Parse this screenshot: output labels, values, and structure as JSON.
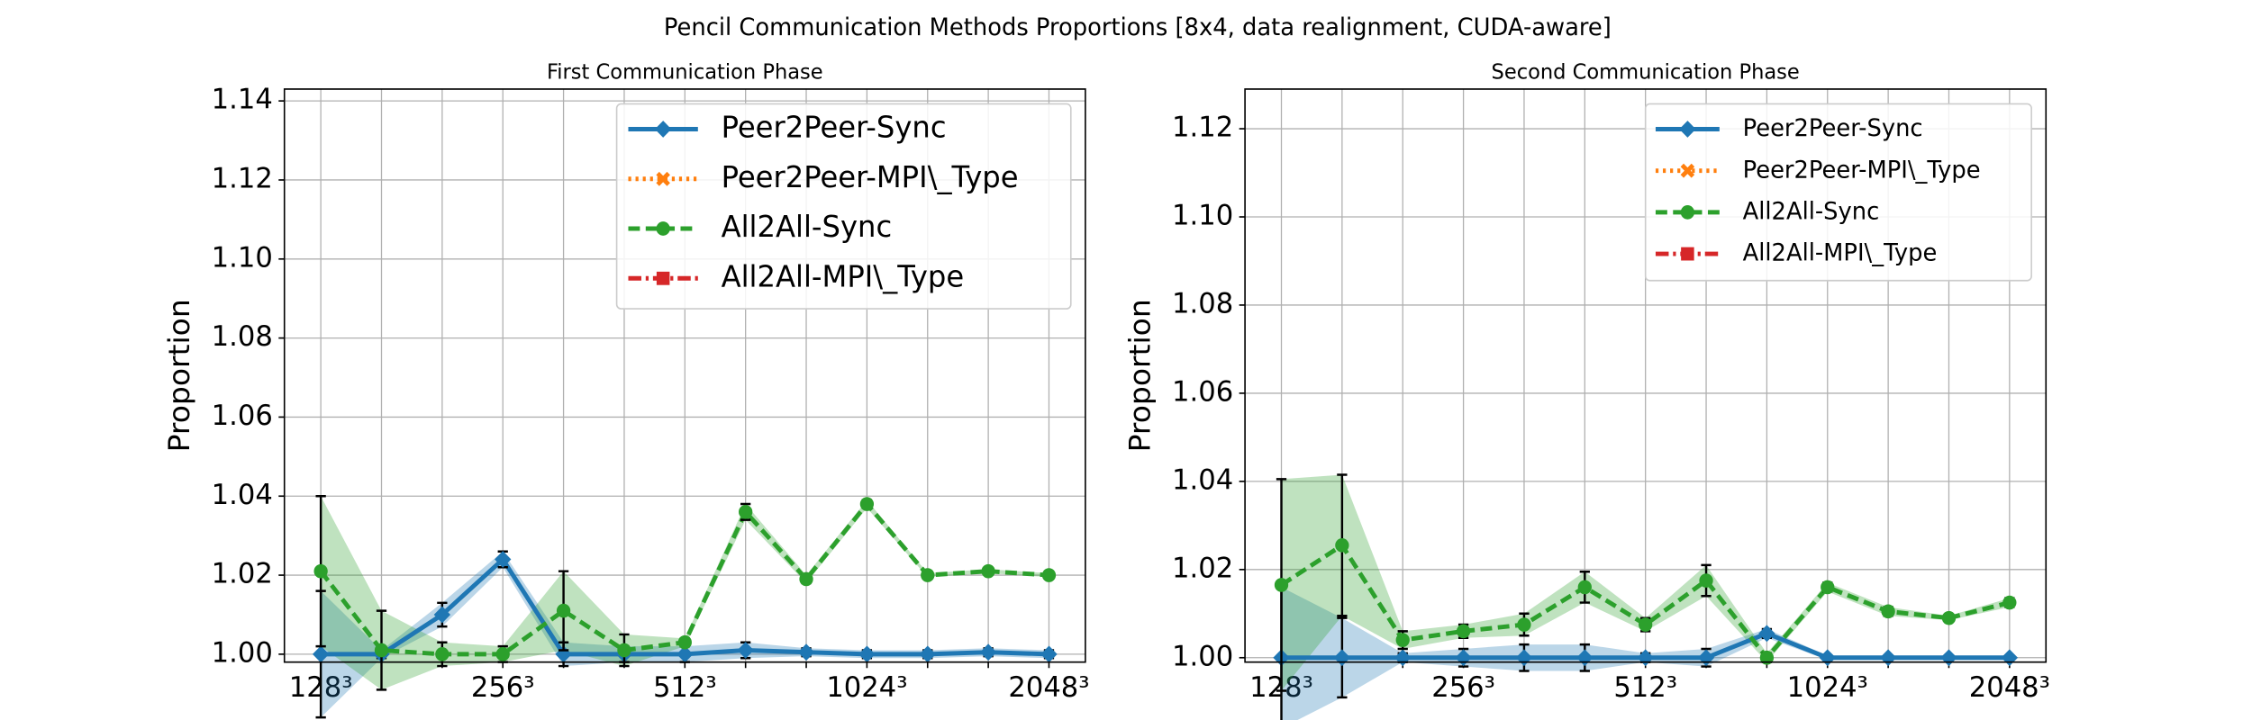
{
  "title": "Pencil Communication Methods Proportions [8x4, data realignment, CUDA-aware]",
  "chart_data": [
    {
      "type": "line",
      "title": "First Communication Phase",
      "y_label": "Proportion",
      "categories": [
        "128³",
        null,
        null,
        "256³",
        null,
        null,
        "512³",
        null,
        null,
        "1024³",
        null,
        null,
        "2048³"
      ],
      "ylim": [
        0.998,
        1.143
      ],
      "yticks": [
        {
          "value": 1.0,
          "label": "1.00"
        },
        {
          "value": 1.02,
          "label": "1.02"
        },
        {
          "value": 1.04,
          "label": "1.04"
        },
        {
          "value": 1.06,
          "label": "1.06"
        },
        {
          "value": 1.08,
          "label": "1.08"
        },
        {
          "value": 1.1,
          "label": "1.10"
        },
        {
          "value": 1.12,
          "label": "1.12"
        },
        {
          "value": 1.14,
          "label": "1.14"
        }
      ],
      "grid": true,
      "legend": "upper right",
      "series": [
        {
          "name": "Peer2Peer-Sync",
          "color": "#1f77b4",
          "linestyle": "solid",
          "marker": "diamond",
          "values": [
            1.0,
            1.0,
            1.01,
            1.024,
            1.0,
            1.0,
            1.0,
            1.001,
            1.0005,
            1.0,
            1.0,
            1.0005,
            1.0
          ],
          "errors": [
            0.016,
            0.001,
            0.003,
            0.002,
            0.003,
            0.002,
            0.002,
            0.002,
            0.001,
            0.001,
            0.001,
            0.001,
            0.001
          ]
        },
        {
          "name": "Peer2Peer-MPI\\_Type",
          "color": "#ff7f0e",
          "linestyle": "dotted",
          "marker": "x",
          "values": [
            null,
            null,
            null,
            null,
            null,
            null,
            null,
            null,
            null,
            null,
            null,
            null,
            null
          ]
        },
        {
          "name": "All2All-Sync",
          "color": "#2ca02c",
          "linestyle": "dashed",
          "marker": "circle",
          "values": [
            1.021,
            1.001,
            1.0,
            1.0,
            1.011,
            1.001,
            1.003,
            1.036,
            1.019,
            1.038,
            1.02,
            1.021,
            1.02
          ],
          "errors": [
            0.019,
            0.01,
            0.003,
            0.002,
            0.01,
            0.004,
            0.001,
            0.002,
            0.001,
            0.001,
            0.0005,
            0.0005,
            0.0005
          ]
        },
        {
          "name": "All2All-MPI\\_Type",
          "color": "#d62728",
          "linestyle": "dashdot",
          "marker": "square",
          "values": [
            null,
            null,
            null,
            null,
            null,
            null,
            null,
            null,
            null,
            null,
            null,
            null,
            null
          ]
        }
      ]
    },
    {
      "type": "line",
      "title": "Second Communication Phase",
      "y_label": "Proportion",
      "categories": [
        "128³",
        null,
        null,
        "256³",
        null,
        null,
        "512³",
        null,
        null,
        "1024³",
        null,
        null,
        "2048³"
      ],
      "ylim": [
        0.999,
        1.129
      ],
      "yticks": [
        {
          "value": 1.0,
          "label": "1.00"
        },
        {
          "value": 1.02,
          "label": "1.02"
        },
        {
          "value": 1.04,
          "label": "1.04"
        },
        {
          "value": 1.06,
          "label": "1.06"
        },
        {
          "value": 1.08,
          "label": "1.08"
        },
        {
          "value": 1.1,
          "label": "1.10"
        },
        {
          "value": 1.12,
          "label": "1.12"
        }
      ],
      "grid": true,
      "legend": "upper right",
      "series": [
        {
          "name": "Peer2Peer-Sync",
          "color": "#1f77b4",
          "linestyle": "solid",
          "marker": "diamond",
          "values": [
            1.0,
            1.0,
            1.0,
            1.0,
            1.0,
            1.0,
            1.0,
            1.0,
            1.0055,
            1.0,
            1.0,
            1.0,
            1.0
          ],
          "errors": [
            0.016,
            0.009,
            0.001,
            0.002,
            0.003,
            0.003,
            0.001,
            0.002,
            0.001,
            0.0005,
            0.0005,
            0.0005,
            0.0005
          ]
        },
        {
          "name": "Peer2Peer-MPI\\_Type",
          "color": "#ff7f0e",
          "linestyle": "dotted",
          "marker": "x",
          "values": [
            null,
            null,
            null,
            null,
            null,
            null,
            null,
            null,
            null,
            null,
            null,
            null,
            null
          ]
        },
        {
          "name": "All2All-Sync",
          "color": "#2ca02c",
          "linestyle": "dashed",
          "marker": "circle",
          "values": [
            1.0165,
            1.0255,
            1.004,
            1.006,
            1.0075,
            1.016,
            1.0075,
            1.0175,
            1.0,
            1.016,
            1.0105,
            1.009,
            1.0125
          ],
          "errors": [
            0.024,
            0.016,
            0.002,
            0.0015,
            0.0025,
            0.0035,
            0.0015,
            0.0035,
            0.001,
            0.001,
            0.001,
            0.0005,
            0.001
          ]
        },
        {
          "name": "All2All-MPI\\_Type",
          "color": "#d62728",
          "linestyle": "dashdot",
          "marker": "square",
          "values": [
            null,
            null,
            null,
            null,
            null,
            null,
            null,
            null,
            null,
            null,
            null,
            null,
            null
          ]
        }
      ]
    }
  ]
}
